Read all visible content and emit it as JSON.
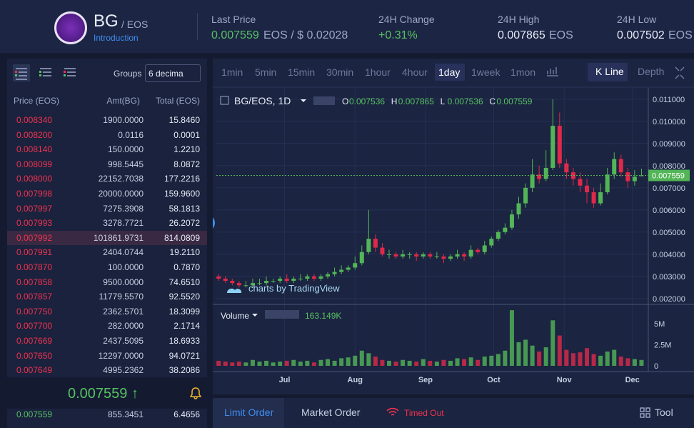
{
  "header": {
    "symbol": "BG",
    "pair": "/ EOS",
    "introduction": "Introduction",
    "last_price_label": "Last Price",
    "last_price": "0.007559",
    "last_price_unit": "EOS / $ 0.02028",
    "change_label": "24H Change",
    "change": "+0.31%",
    "high_label": "24H High",
    "high": "0.007865",
    "high_unit": "EOS",
    "low_label": "24H Low",
    "low": "0.007502",
    "low_unit": "EOS"
  },
  "order_book": {
    "groups_label": "Groups",
    "groups_value": "6 decima",
    "columns": [
      "Price (EOS)",
      "Amt(BG)",
      "Total (EOS)"
    ],
    "asks": [
      [
        "0.008340",
        "1900.0000",
        "15.8460"
      ],
      [
        "0.008200",
        "0.0116",
        "0.0001"
      ],
      [
        "0.008140",
        "150.0000",
        "1.2210"
      ],
      [
        "0.008099",
        "998.5445",
        "8.0872"
      ],
      [
        "0.008000",
        "22152.7038",
        "177.2216"
      ],
      [
        "0.007998",
        "20000.0000",
        "159.9600"
      ],
      [
        "0.007997",
        "7275.3908",
        "58.1813"
      ],
      [
        "0.007993",
        "3278.7721",
        "26.2072"
      ],
      [
        "0.007992",
        "101861.9731",
        "814.0809"
      ],
      [
        "0.007991",
        "2404.0744",
        "19.2110"
      ],
      [
        "0.007870",
        "100.0000",
        "0.7870"
      ],
      [
        "0.007858",
        "9500.0000",
        "74.6510"
      ],
      [
        "0.007857",
        "11779.5570",
        "92.5520"
      ],
      [
        "0.007750",
        "2362.5701",
        "18.3099"
      ],
      [
        "0.007700",
        "282.0000",
        "2.1714"
      ],
      [
        "0.007669",
        "2437.5095",
        "18.6933"
      ],
      [
        "0.007650",
        "12297.0000",
        "94.0721"
      ],
      [
        "0.007649",
        "4995.2362",
        "38.2086"
      ]
    ],
    "last": "0.007559 ↑",
    "bids": [
      [
        "0.007559",
        "855.3451",
        "6.4656"
      ]
    ]
  },
  "toolbar": {
    "intervals": [
      "1min",
      "5min",
      "15min",
      "30min",
      "1hour",
      "4hour",
      "1day",
      "1week",
      "1mon"
    ],
    "views": [
      "K Line",
      "Depth"
    ]
  },
  "chart_data": {
    "type": "candlestick",
    "title": "BG/EOS, 1D",
    "ohlc_legend": [
      "O",
      "0.007536",
      "H",
      "0.007865",
      "L",
      "0.007536",
      "C",
      "0.007559"
    ],
    "watermark": "charts by TradingView",
    "volume_label": "Volume",
    "volume_value": "163.149K",
    "xlim": [
      0,
      190
    ],
    "xticks": [
      {
        "value": 30,
        "label": "Jul"
      },
      {
        "value": 61,
        "label": "Aug"
      },
      {
        "value": 92,
        "label": "Sep"
      },
      {
        "value": 122,
        "label": "Oct"
      },
      {
        "value": 153,
        "label": "Nov"
      },
      {
        "value": 183,
        "label": "Dec"
      }
    ],
    "ylim": [
      0.00177,
      0.01135
    ],
    "yticks": [
      {
        "value": 0.002,
        "label": "0.002000"
      },
      {
        "value": 0.003,
        "label": "0.003000"
      },
      {
        "value": 0.004,
        "label": "0.004000"
      },
      {
        "value": 0.005,
        "label": "0.005000"
      },
      {
        "value": 0.006,
        "label": "0.006000"
      },
      {
        "value": 0.007,
        "label": "0.007000"
      },
      {
        "value": 0.008,
        "label": "0.008000"
      },
      {
        "value": 0.009,
        "label": "0.009000"
      },
      {
        "value": 0.01,
        "label": "0.010000"
      },
      {
        "value": 0.011,
        "label": "0.011000"
      }
    ],
    "vlim": [
      0,
      6950000
    ],
    "vticks": [
      {
        "value": 0,
        "label": "0"
      },
      {
        "value": 2500000,
        "label": "2.5M"
      },
      {
        "value": 5000000,
        "label": "5M"
      }
    ],
    "last_price": 0.007559,
    "up_color": "#53b557",
    "down_color": "#e0294a",
    "x": [
      1,
      4,
      7,
      10,
      13,
      16,
      19,
      22,
      25,
      28,
      31,
      34,
      37,
      40,
      43,
      46,
      49,
      52,
      55,
      58,
      61,
      64,
      67,
      70,
      73,
      76,
      79,
      82,
      85,
      88,
      91,
      94,
      97,
      100,
      103,
      106,
      109,
      112,
      115,
      118,
      121,
      124,
      127,
      130,
      133,
      136,
      139,
      142,
      145,
      148,
      151,
      154,
      157,
      160,
      163,
      166,
      169,
      172,
      175,
      178,
      181,
      184,
      187
    ],
    "open": [
      0.003,
      0.0029,
      0.0028,
      0.0027,
      0.0026,
      0.0026,
      0.0027,
      0.0027,
      0.0028,
      0.0028,
      0.0029,
      0.0028,
      0.0029,
      0.0029,
      0.003,
      0.0029,
      0.003,
      0.0031,
      0.0032,
      0.0033,
      0.0034,
      0.0036,
      0.0041,
      0.0047,
      0.0043,
      0.004,
      0.004,
      0.0039,
      0.004,
      0.004,
      0.0039,
      0.004,
      0.0039,
      0.0039,
      0.0038,
      0.0039,
      0.004,
      0.0039,
      0.0042,
      0.0041,
      0.0044,
      0.0047,
      0.005,
      0.0052,
      0.0058,
      0.0063,
      0.007,
      0.0076,
      0.0074,
      0.0079,
      0.0098,
      0.0081,
      0.0077,
      0.0074,
      0.0071,
      0.0068,
      0.0063,
      0.0068,
      0.0076,
      0.0083,
      0.0077,
      0.0073,
      0.007536
    ],
    "high": [
      0.0031,
      0.003,
      0.0029,
      0.0028,
      0.0028,
      0.0029,
      0.0029,
      0.003,
      0.0029,
      0.003,
      0.0031,
      0.003,
      0.0031,
      0.0031,
      0.0031,
      0.0031,
      0.0032,
      0.0034,
      0.0035,
      0.0035,
      0.0039,
      0.0044,
      0.006,
      0.0049,
      0.0045,
      0.0042,
      0.0041,
      0.0042,
      0.0041,
      0.0041,
      0.0041,
      0.0041,
      0.0041,
      0.004,
      0.004,
      0.0042,
      0.0041,
      0.0044,
      0.0043,
      0.0046,
      0.0048,
      0.0051,
      0.0054,
      0.006,
      0.0066,
      0.0072,
      0.0083,
      0.008,
      0.0087,
      0.011,
      0.0104,
      0.0083,
      0.0079,
      0.0077,
      0.0074,
      0.007,
      0.0072,
      0.0079,
      0.0086,
      0.0085,
      0.0079,
      0.0078,
      0.007865
    ],
    "low": [
      0.0028,
      0.0027,
      0.0026,
      0.0025,
      0.0025,
      0.0025,
      0.0026,
      0.0026,
      0.0027,
      0.0027,
      0.0027,
      0.0027,
      0.0028,
      0.0028,
      0.0028,
      0.0028,
      0.0029,
      0.003,
      0.0031,
      0.0032,
      0.0033,
      0.0035,
      0.004,
      0.0041,
      0.0039,
      0.0038,
      0.0038,
      0.0038,
      0.0038,
      0.0037,
      0.0038,
      0.0038,
      0.0038,
      0.0036,
      0.0037,
      0.0038,
      0.0037,
      0.0038,
      0.004,
      0.004,
      0.0043,
      0.0046,
      0.0049,
      0.0051,
      0.0056,
      0.0061,
      0.0068,
      0.0072,
      0.0073,
      0.0078,
      0.0079,
      0.0074,
      0.0071,
      0.0068,
      0.0063,
      0.0061,
      0.0062,
      0.0067,
      0.0074,
      0.0075,
      0.007,
      0.0071,
      0.007536
    ],
    "close": [
      0.0029,
      0.0028,
      0.0027,
      0.0026,
      0.0026,
      0.0027,
      0.0027,
      0.0028,
      0.0028,
      0.0029,
      0.0028,
      0.0029,
      0.0029,
      0.003,
      0.0029,
      0.003,
      0.0031,
      0.0032,
      0.0033,
      0.0034,
      0.0036,
      0.0041,
      0.0047,
      0.0043,
      0.004,
      0.004,
      0.0039,
      0.004,
      0.004,
      0.0039,
      0.004,
      0.0039,
      0.0039,
      0.0038,
      0.0039,
      0.004,
      0.0039,
      0.0042,
      0.0041,
      0.0044,
      0.0047,
      0.005,
      0.0052,
      0.0058,
      0.0063,
      0.007,
      0.0076,
      0.0074,
      0.0079,
      0.0098,
      0.0081,
      0.0077,
      0.0074,
      0.0071,
      0.0068,
      0.0063,
      0.0068,
      0.0076,
      0.0083,
      0.0077,
      0.0073,
      0.0075,
      0.007559
    ],
    "volume": [
      600000,
      500000,
      400000,
      500000,
      400000,
      700000,
      500000,
      600000,
      400000,
      500000,
      600000,
      700000,
      500000,
      600000,
      400000,
      700000,
      800000,
      600000,
      900000,
      1000000,
      1200000,
      1800000,
      1500000,
      1100000,
      700000,
      600000,
      500000,
      700000,
      600000,
      500000,
      800000,
      600000,
      500000,
      700000,
      600000,
      900000,
      800000,
      1000000,
      700000,
      1100000,
      1200000,
      1400000,
      1800000,
      6600000,
      2800000,
      3100000,
      2400000,
      1700000,
      2200000,
      5400000,
      3600000,
      1900000,
      1500000,
      1600000,
      2100000,
      1400000,
      1200000,
      1700000,
      1900000,
      1100000,
      900000,
      800000,
      700000
    ]
  },
  "order_tabs": [
    "Limit Order",
    "Market Order",
    "Timed Out",
    "Tool"
  ]
}
